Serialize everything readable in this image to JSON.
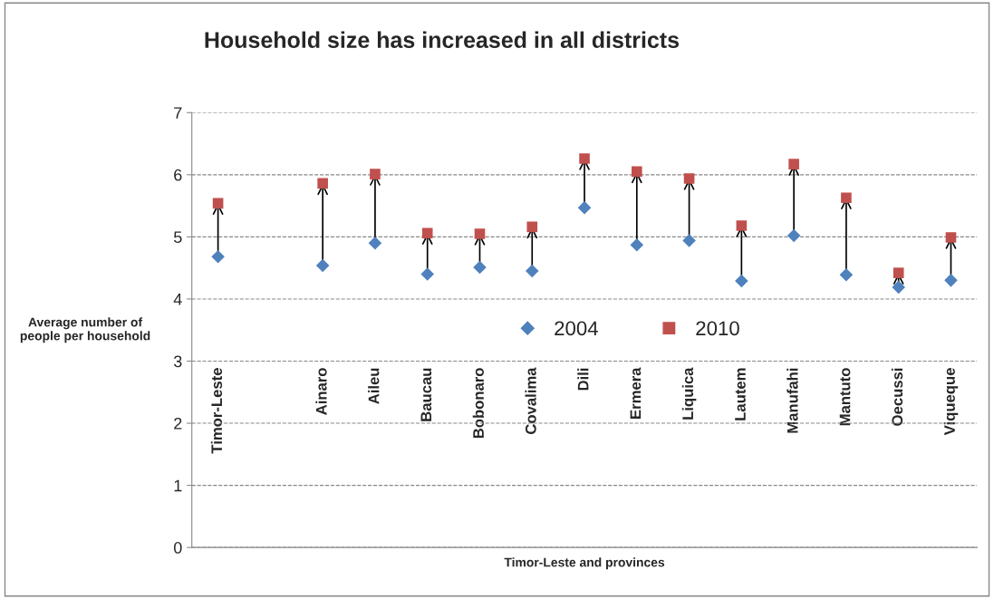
{
  "chart_data": {
    "type": "scatter",
    "title": "Household size has increased in all districts",
    "xlabel": "Timor-Leste and provinces",
    "ylabel": "Average number of\npeople per household",
    "categories": [
      "Timor-Leste",
      null,
      "Ainaro",
      "Aileu",
      "Baucau",
      "Bobonaro",
      "Covalima",
      "Dili",
      "Ermera",
      "Liquica",
      "Lautem",
      "Manufahi",
      "Mantuto",
      "Oecussi",
      "Viqueque"
    ],
    "series": [
      {
        "name": "2004",
        "color": "#4f81bd",
        "marker": "diamond",
        "values": [
          4.68,
          null,
          4.54,
          4.9,
          4.4,
          4.51,
          4.45,
          5.47,
          4.87,
          4.94,
          4.29,
          5.02,
          4.39,
          4.19,
          4.3
        ]
      },
      {
        "name": "2010",
        "color": "#c0504d",
        "marker": "square",
        "values": [
          5.54,
          null,
          5.86,
          6.01,
          5.06,
          5.05,
          5.16,
          6.26,
          6.05,
          5.94,
          5.18,
          6.17,
          5.63,
          4.42,
          4.99
        ]
      }
    ],
    "ylim": [
      0,
      7
    ],
    "yticks": [
      0,
      1,
      2,
      3,
      4,
      5,
      6,
      7
    ],
    "grid": "y",
    "legend": "center"
  }
}
